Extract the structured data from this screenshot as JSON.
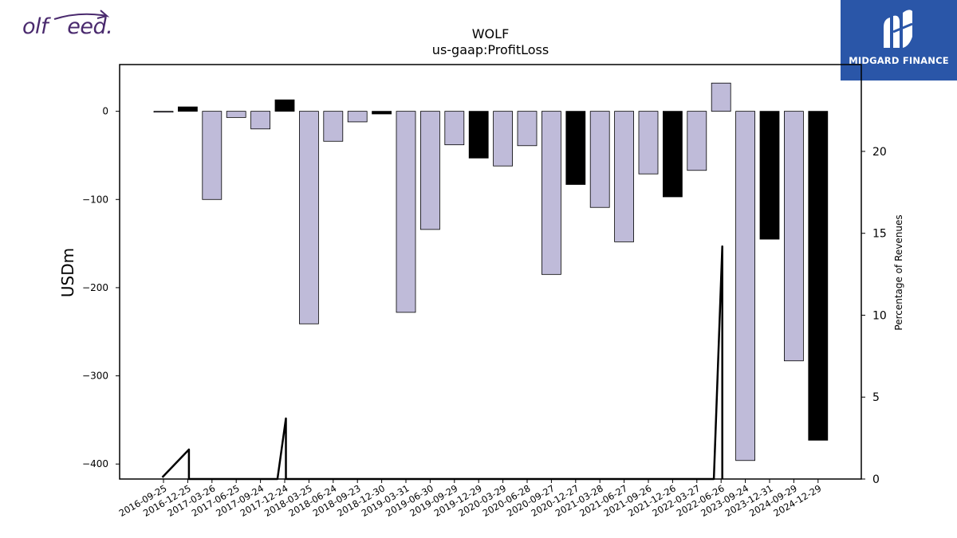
{
  "branding": {
    "left_logo_text": "olf   eed.",
    "right_logo_text": "MIDGARD FINANCE",
    "right_logo_bg": "#2a56a8",
    "left_logo_color": "#4a2a6e"
  },
  "chart_data": {
    "type": "bar",
    "title": "WOLF",
    "subtitle": "us-gaap:ProfitLoss",
    "ylabel": "USDm",
    "y2label": "Percentage of Revenues",
    "ylim": [
      -417,
      53
    ],
    "y2lim": [
      0,
      25.3
    ],
    "yticks": [
      0,
      -100,
      -200,
      -300,
      -400
    ],
    "y2ticks": [
      0,
      5,
      10,
      15,
      20
    ],
    "grid": false,
    "colors": {
      "bar_light": "#bfbbd9",
      "bar_dark": "#000000",
      "line": "#000000"
    },
    "categories": [
      "2016-09-25",
      "2016-12-25",
      "2017-03-26",
      "2017-06-25",
      "2017-09-24",
      "2017-12-24",
      "2018-03-25",
      "2018-06-24",
      "2018-09-23",
      "2018-12-30",
      "2019-03-31",
      "2019-06-30",
      "2019-09-29",
      "2019-12-29",
      "2020-03-29",
      "2020-06-28",
      "2020-09-27",
      "2020-12-27",
      "2021-03-28",
      "2021-06-27",
      "2021-09-26",
      "2021-12-26",
      "2022-03-27",
      "2022-06-26",
      "2023-09-24",
      "2023-12-31",
      "2024-09-29",
      "2024-12-29"
    ],
    "series": [
      {
        "values": [
          -1,
          5,
          -100,
          -7,
          -20,
          13,
          -241,
          -34,
          -12,
          -3,
          -228,
          -134,
          -38,
          -53,
          -62,
          -39,
          -185,
          -83,
          -109,
          -148,
          -71,
          -97,
          -67,
          32,
          -396,
          -145,
          -283,
          -373
        ],
        "dark": [
          false,
          true,
          false,
          false,
          false,
          true,
          false,
          false,
          false,
          true,
          false,
          false,
          false,
          true,
          false,
          false,
          false,
          true,
          false,
          false,
          false,
          true,
          false,
          false,
          false,
          true,
          false,
          true
        ]
      }
    ],
    "line_series": {
      "axis": "secondary",
      "x": [
        -0.05,
        1.05,
        1.05,
        4.7,
        5.05,
        5.05,
        22.7,
        23.05,
        23.05
      ],
      "values": [
        0.1,
        1.8,
        0,
        0,
        3.7,
        0,
        0,
        14.2,
        0
      ]
    }
  }
}
